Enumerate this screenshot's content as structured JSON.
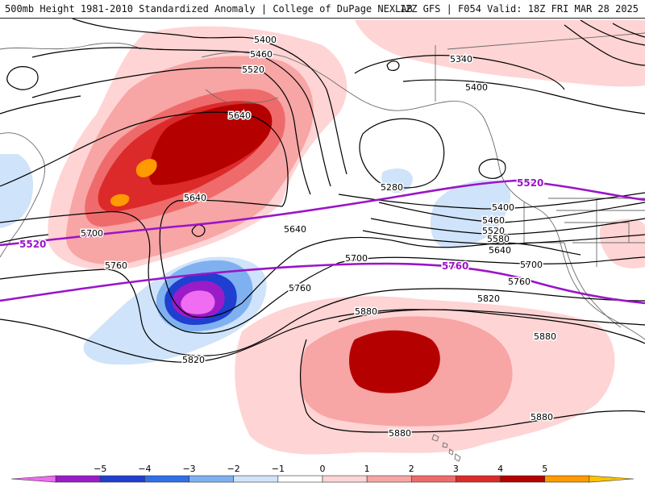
{
  "header": {
    "title_left": "500mb Height 1981-2010 Standardized Anomaly | College of DuPage NEXLAB",
    "title_right": "12Z GFS | F054 Valid: 18Z FRI MAR 28 2025"
  },
  "contour_labels": {
    "l5400a": "5400",
    "l5460a": "5460",
    "l5520a": "5520",
    "l5640a": "5640",
    "l5640b": "5640",
    "l5640c": "5640",
    "l5700a": "5700",
    "l5700b": "5700",
    "l5700c": "5700",
    "l5760a": "5760",
    "l5760b": "5760",
    "l5760c": "5760",
    "l5820a": "5820",
    "l5820b": "5820",
    "l5880a": "5880",
    "l5880b": "5880",
    "l5880c": "5880",
    "l5880d": "5880",
    "l5340": "5340",
    "l5400b": "5400",
    "l5280": "5280",
    "l5400c": "5400",
    "l5460b": "5460",
    "l5520b": "5520",
    "l5580": "5580",
    "l5640d": "5640"
  },
  "climatology_labels": {
    "c5520a": "5520",
    "c5520b": "5520",
    "c5760": "5760"
  },
  "colorbar": {
    "ticks": [
      "−5",
      "−4",
      "−3",
      "−2",
      "−1",
      "0",
      "1",
      "2",
      "3",
      "4",
      "5"
    ],
    "colors": [
      "#f06cf0",
      "#9a1bc8",
      "#1e3fcf",
      "#2f6fe8",
      "#7fb1f0",
      "#cfe3fa",
      "#ffffff",
      "#ffd4d4",
      "#f7a5a5",
      "#ef6b6b",
      "#dc2a2a",
      "#b50000",
      "#ff9a00",
      "#ffc400"
    ]
  }
}
